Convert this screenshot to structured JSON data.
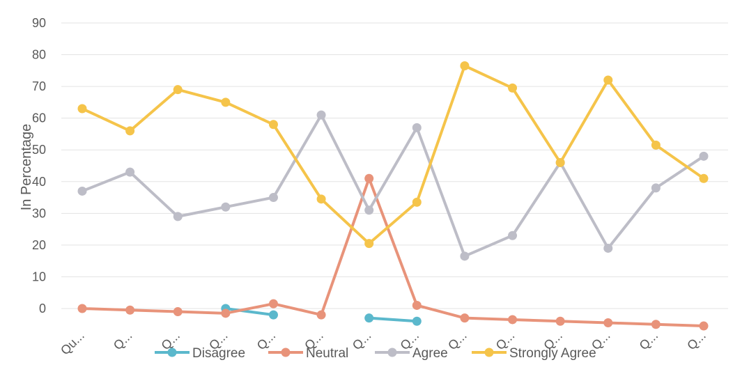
{
  "chart_data": {
    "type": "line",
    "title": "",
    "xlabel": "",
    "ylabel": "In Percentage",
    "ylim": [
      0,
      90
    ],
    "yticks": [
      "90",
      "80",
      "70",
      "60",
      "50",
      "40",
      "30",
      "20",
      "10",
      "0"
    ],
    "grid": true,
    "legend_position": "bottom",
    "categories": [
      "Qu...",
      "Q...",
      "Q...",
      "Q...",
      "Q...",
      "Q...",
      "Q...",
      "Q...",
      "Q...",
      "Q...",
      "Q...",
      "Q...",
      "Q...",
      "Q..."
    ],
    "series": [
      {
        "name": "Disagree",
        "color": "#5bb8cc",
        "values": [
          null,
          null,
          null,
          0,
          -2,
          null,
          -3,
          -4,
          null,
          null,
          null,
          null,
          null,
          null
        ]
      },
      {
        "name": "Neutral",
        "color": "#e8937a",
        "values": [
          0,
          -0.5,
          -1,
          -1.5,
          1.5,
          -2,
          41,
          1,
          -3,
          -3.5,
          -4,
          -4.5,
          -5,
          -5.5
        ]
      },
      {
        "name": "Agree",
        "color": "#bdbdc7",
        "values": [
          37,
          43,
          29,
          32,
          35,
          61,
          31,
          57,
          16.5,
          23,
          46,
          19,
          38,
          48
        ]
      },
      {
        "name": "Strongly Agree",
        "color": "#f5c44a",
        "values": [
          63,
          56,
          69,
          65,
          58,
          34.5,
          20.5,
          33.5,
          76.5,
          69.5,
          46,
          72,
          51.5,
          41
        ]
      }
    ]
  }
}
